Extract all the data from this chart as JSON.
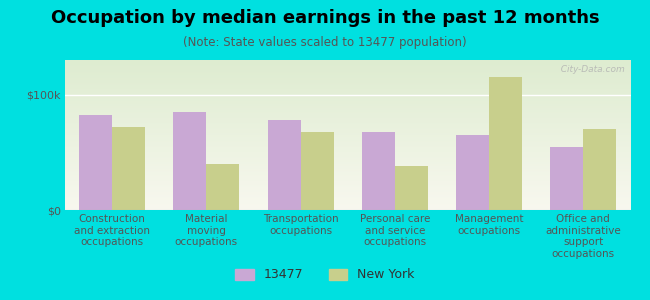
{
  "title": "Occupation by median earnings in the past 12 months",
  "subtitle": "(Note: State values scaled to 13477 population)",
  "categories": [
    "Construction\nand extraction\noccupations",
    "Material\nmoving\noccupations",
    "Transportation\noccupations",
    "Personal care\nand service\noccupations",
    "Management\noccupations",
    "Office and\nadministrative\nsupport\noccupations"
  ],
  "values_13477": [
    82000,
    85000,
    78000,
    68000,
    65000,
    55000
  ],
  "values_ny": [
    72000,
    40000,
    68000,
    38000,
    115000,
    70000
  ],
  "color_13477": "#c9a8d4",
  "color_ny": "#c8cf8c",
  "background_outer": "#00e0e0",
  "background_inner_top": "#deecd0",
  "background_inner_bottom": "#f8f8ef",
  "ylabel_tick": [
    "$0",
    "$100k"
  ],
  "ytick_values": [
    0,
    100000
  ],
  "ylim": [
    0,
    130000
  ],
  "watermark": "  City-Data.com",
  "legend_13477": "13477",
  "legend_ny": "New York",
  "title_fontsize": 13,
  "subtitle_fontsize": 8.5,
  "tick_fontsize": 8,
  "xlabel_fontsize": 7.5
}
